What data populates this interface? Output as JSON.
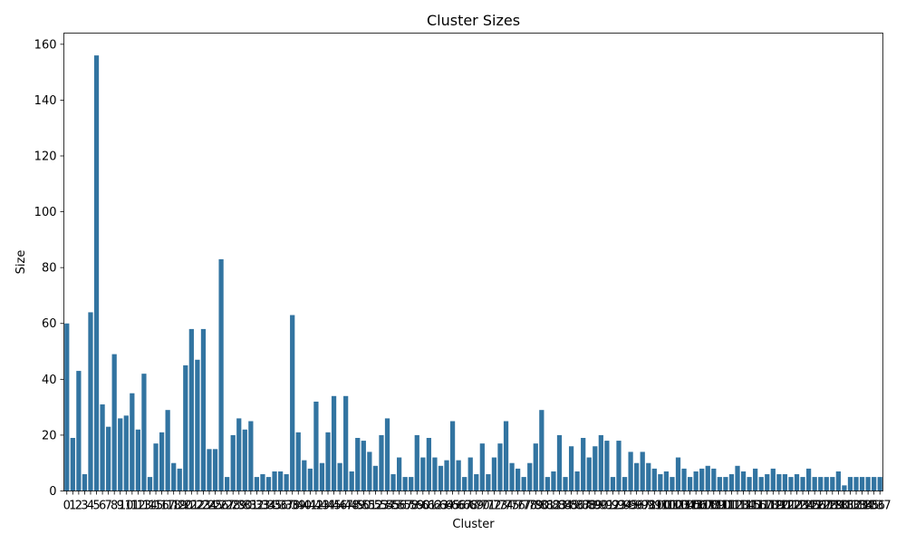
{
  "chart_data": {
    "type": "bar",
    "title": "Cluster Sizes",
    "xlabel": "Cluster",
    "ylabel": "Size",
    "ylim": [
      0,
      164
    ],
    "yticks": [
      0,
      20,
      40,
      60,
      80,
      100,
      120,
      140,
      160
    ],
    "grid": false,
    "bar_color": "#3274a1",
    "categories": [
      "0",
      "1",
      "2",
      "3",
      "4",
      "5",
      "6",
      "7",
      "8",
      "9",
      "10",
      "11",
      "12",
      "13",
      "14",
      "15",
      "16",
      "17",
      "18",
      "19",
      "20",
      "21",
      "22",
      "23",
      "24",
      "25",
      "26",
      "27",
      "28",
      "29",
      "30",
      "31",
      "32",
      "33",
      "34",
      "35",
      "36",
      "37",
      "38",
      "39",
      "40",
      "41",
      "42",
      "43",
      "44",
      "45",
      "46",
      "47",
      "48",
      "49",
      "50",
      "51",
      "52",
      "53",
      "54",
      "55",
      "56",
      "57",
      "58",
      "59",
      "60",
      "61",
      "62",
      "63",
      "64",
      "65",
      "66",
      "67",
      "68",
      "69",
      "70",
      "71",
      "72",
      "73",
      "74",
      "75",
      "76",
      "77",
      "78",
      "79",
      "80",
      "81",
      "82",
      "83",
      "84",
      "85",
      "86",
      "87",
      "88",
      "89",
      "90",
      "91",
      "92",
      "93",
      "94",
      "95",
      "96",
      "97",
      "98",
      "99",
      "100",
      "101",
      "102",
      "103",
      "104",
      "105",
      "106",
      "107",
      "108",
      "109",
      "110",
      "111",
      "112",
      "113",
      "114",
      "115",
      "116",
      "117",
      "118",
      "119",
      "120",
      "121",
      "122",
      "123",
      "124",
      "125",
      "126",
      "127",
      "128",
      "129",
      "130",
      "131",
      "132",
      "133",
      "134",
      "135",
      "136",
      "137"
    ],
    "values": [
      60,
      19,
      43,
      6,
      64,
      156,
      31,
      23,
      49,
      26,
      27,
      35,
      22,
      42,
      5,
      17,
      21,
      29,
      10,
      8,
      45,
      58,
      47,
      58,
      15,
      15,
      83,
      5,
      20,
      26,
      22,
      25,
      5,
      6,
      5,
      7,
      7,
      6,
      63,
      21,
      11,
      8,
      32,
      10,
      21,
      34,
      10,
      34,
      7,
      19,
      18,
      14,
      9,
      20,
      26,
      6,
      12,
      5,
      5,
      20,
      12,
      19,
      12,
      9,
      11,
      25,
      11,
      5,
      12,
      6,
      17,
      6,
      12,
      17,
      25,
      10,
      8,
      5,
      10,
      17,
      29,
      5,
      7,
      20,
      5,
      16,
      7,
      19,
      12,
      16,
      20,
      18,
      5,
      18,
      5,
      14,
      10,
      14,
      10,
      8,
      6,
      7,
      5,
      12,
      8,
      5,
      7,
      8,
      9,
      8,
      5,
      5,
      6,
      9,
      7,
      5,
      8,
      5,
      6,
      8,
      6,
      6,
      5,
      6,
      5,
      8,
      5,
      5,
      5,
      5,
      7,
      2,
      5,
      5,
      5,
      5,
      5,
      5
    ]
  }
}
